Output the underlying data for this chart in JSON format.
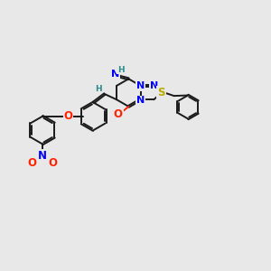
{
  "background_color": "#e8e8e8",
  "bond_color": "#1a1a1a",
  "atom_colors": {
    "N": "#0000ff",
    "O": "#ff2200",
    "S": "#bbaa00",
    "H_teal": "#2e8b8b",
    "C": "#1a1a1a"
  },
  "figsize": [
    3.0,
    3.0
  ],
  "dpi": 100,
  "lw": 1.4,
  "font_size_atom": 7.5,
  "font_size_H": 6.5
}
